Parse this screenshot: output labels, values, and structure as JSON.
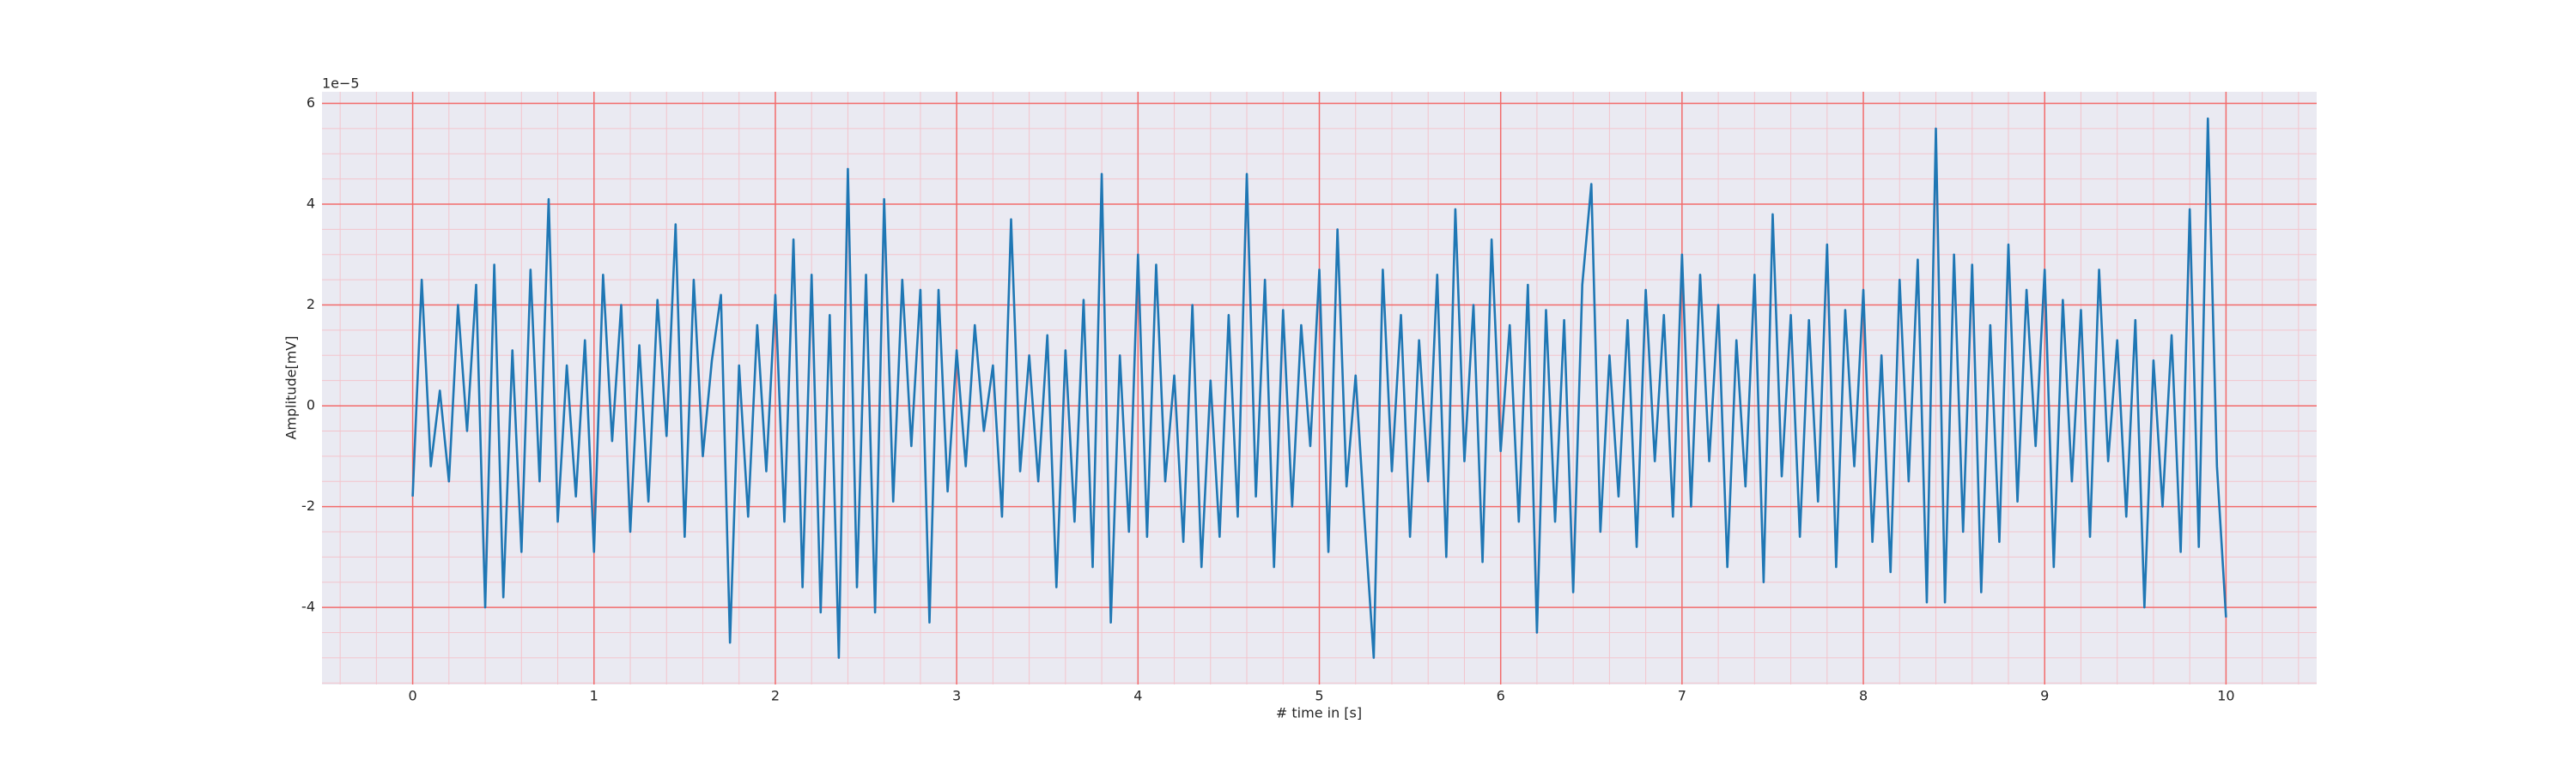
{
  "chart_data": {
    "type": "line",
    "y_offset_label": "1e−5",
    "xlabel": "# time in [s]",
    "ylabel": "Amplitude[mV]",
    "xlim": [
      -0.5,
      10.5
    ],
    "ylim": [
      -5.53,
      6.23
    ],
    "xticks": [
      0,
      1,
      2,
      3,
      4,
      5,
      6,
      7,
      8,
      9,
      10
    ],
    "yticks": [
      -4,
      -2,
      0,
      2,
      4,
      6
    ],
    "xminorticks": [
      -0.4,
      -0.2,
      0.2,
      0.4,
      0.6,
      0.8,
      1.2,
      1.4,
      1.6,
      1.8,
      2.2,
      2.4,
      2.6,
      2.8,
      3.2,
      3.4,
      3.6,
      3.8,
      4.2,
      4.4,
      4.6,
      4.8,
      5.2,
      5.4,
      5.6,
      5.8,
      6.2,
      6.4,
      6.6,
      6.8,
      7.2,
      7.4,
      7.6,
      7.8,
      8.2,
      8.4,
      8.6,
      8.8,
      9.2,
      9.4,
      9.6,
      9.8,
      10.2,
      10.4
    ],
    "yminorticks": [
      -5.5,
      -5,
      -4.5,
      -3.5,
      -3,
      -2.5,
      -1.5,
      -1,
      -0.5,
      0.5,
      1,
      1.5,
      2.5,
      3,
      3.5,
      4.5,
      5,
      5.5
    ],
    "grid": true,
    "grid_color": "#f26b6b",
    "minor_grid_color": "#f3c4cc",
    "background": "#eaeaf2",
    "x": [
      0,
      0.05,
      0.1,
      0.15,
      0.2,
      0.25,
      0.3,
      0.35,
      0.4,
      0.45,
      0.5,
      0.55,
      0.6,
      0.65,
      0.7,
      0.75,
      0.8,
      0.85,
      0.9,
      0.95,
      1,
      1.05,
      1.1,
      1.15,
      1.2,
      1.25,
      1.3,
      1.35,
      1.4,
      1.45,
      1.5,
      1.55,
      1.6,
      1.65,
      1.7,
      1.75,
      1.8,
      1.85,
      1.9,
      1.95,
      2,
      2.05,
      2.1,
      2.15,
      2.2,
      2.25,
      2.3,
      2.35,
      2.4,
      2.45,
      2.5,
      2.55,
      2.6,
      2.65,
      2.7,
      2.75,
      2.8,
      2.85,
      2.9,
      2.95,
      3,
      3.05,
      3.1,
      3.15,
      3.2,
      3.25,
      3.3,
      3.35,
      3.4,
      3.45,
      3.5,
      3.55,
      3.6,
      3.65,
      3.7,
      3.75,
      3.8,
      3.85,
      3.9,
      3.95,
      4,
      4.05,
      4.1,
      4.15,
      4.2,
      4.25,
      4.3,
      4.35,
      4.4,
      4.45,
      4.5,
      4.55,
      4.6,
      4.65,
      4.7,
      4.75,
      4.8,
      4.85,
      4.9,
      4.95,
      5,
      5.05,
      5.1,
      5.15,
      5.2,
      5.25,
      5.3,
      5.35,
      5.4,
      5.45,
      5.5,
      5.55,
      5.6,
      5.65,
      5.7,
      5.75,
      5.8,
      5.85,
      5.9,
      5.95,
      6,
      6.05,
      6.1,
      6.15,
      6.2,
      6.25,
      6.3,
      6.35,
      6.4,
      6.45,
      6.5,
      6.55,
      6.6,
      6.65,
      6.7,
      6.75,
      6.8,
      6.85,
      6.9,
      6.95,
      7,
      7.05,
      7.1,
      7.15,
      7.2,
      7.25,
      7.3,
      7.35,
      7.4,
      7.45,
      7.5,
      7.55,
      7.6,
      7.65,
      7.7,
      7.75,
      7.8,
      7.85,
      7.9,
      7.95,
      8,
      8.05,
      8.1,
      8.15,
      8.2,
      8.25,
      8.3,
      8.35,
      8.4,
      8.45,
      8.5,
      8.55,
      8.6,
      8.65,
      8.7,
      8.75,
      8.8,
      8.85,
      8.9,
      8.95,
      9,
      9.05,
      9.1,
      9.15,
      9.2,
      9.25,
      9.3,
      9.35,
      9.4,
      9.45,
      9.5,
      9.55,
      9.6,
      9.65,
      9.7,
      9.75,
      9.8,
      9.85,
      9.9,
      9.95,
      10
    ],
    "series": [
      {
        "color": "#1f77b4",
        "values": [
          -1.8,
          2.5,
          -1.2,
          0.3,
          -1.5,
          2.0,
          -0.5,
          2.4,
          -4.0,
          2.8,
          -3.8,
          1.1,
          -2.9,
          2.7,
          -1.5,
          4.1,
          -2.3,
          0.8,
          -1.8,
          1.3,
          -2.9,
          2.6,
          -0.7,
          2.0,
          -2.5,
          1.2,
          -1.9,
          2.1,
          -0.6,
          3.6,
          -2.6,
          2.5,
          -1.0,
          0.9,
          2.2,
          -4.7,
          0.8,
          -2.2,
          1.6,
          -1.3,
          2.2,
          -2.3,
          3.3,
          -3.6,
          2.6,
          -4.1,
          1.8,
          -5.0,
          4.7,
          -3.6,
          2.6,
          -4.1,
          4.1,
          -1.9,
          2.5,
          -0.8,
          2.3,
          -4.3,
          2.3,
          -1.7,
          1.1,
          -1.2,
          1.6,
          -0.5,
          0.8,
          -2.2,
          3.7,
          -1.3,
          1.0,
          -1.5,
          1.4,
          -3.6,
          1.1,
          -2.3,
          2.1,
          -3.2,
          4.6,
          -4.3,
          1.0,
          -2.5,
          3.0,
          -2.6,
          2.8,
          -1.5,
          0.6,
          -2.7,
          2.0,
          -3.2,
          0.5,
          -2.6,
          1.8,
          -2.2,
          4.6,
          -1.8,
          2.5,
          -3.2,
          1.9,
          -2.0,
          1.6,
          -0.8,
          2.7,
          -2.9,
          3.5,
          -1.6,
          0.6,
          -2.3,
          -5.0,
          2.7,
          -1.3,
          1.8,
          -2.6,
          1.3,
          -1.5,
          2.6,
          -3.0,
          3.9,
          -1.1,
          2.0,
          -3.1,
          3.3,
          -0.9,
          1.6,
          -2.3,
          2.4,
          -4.5,
          1.9,
          -2.3,
          1.7,
          -3.7,
          2.4,
          4.4,
          -2.5,
          1.0,
          -1.8,
          1.7,
          -2.8,
          2.3,
          -1.1,
          1.8,
          -2.2,
          3.0,
          -2.0,
          2.6,
          -1.1,
          2.0,
          -3.2,
          1.3,
          -1.6,
          2.6,
          -3.5,
          3.8,
          -1.4,
          1.8,
          -2.6,
          1.7,
          -1.9,
          3.2,
          -3.2,
          1.9,
          -1.2,
          2.3,
          -2.7,
          1.0,
          -3.3,
          2.5,
          -1.5,
          2.9,
          -3.9,
          5.5,
          -3.9,
          3.0,
          -2.5,
          2.8,
          -3.7,
          1.6,
          -2.7,
          3.2,
          -1.9,
          2.3,
          -0.8,
          2.7,
          -3.2,
          2.1,
          -1.5,
          1.9,
          -2.6,
          2.7,
          -1.1,
          1.3,
          -2.2,
          1.7,
          -4.0,
          0.9,
          -2.0,
          1.4,
          -2.9,
          3.9,
          -2.8,
          5.7,
          -1.2,
          -4.2
        ]
      }
    ]
  }
}
